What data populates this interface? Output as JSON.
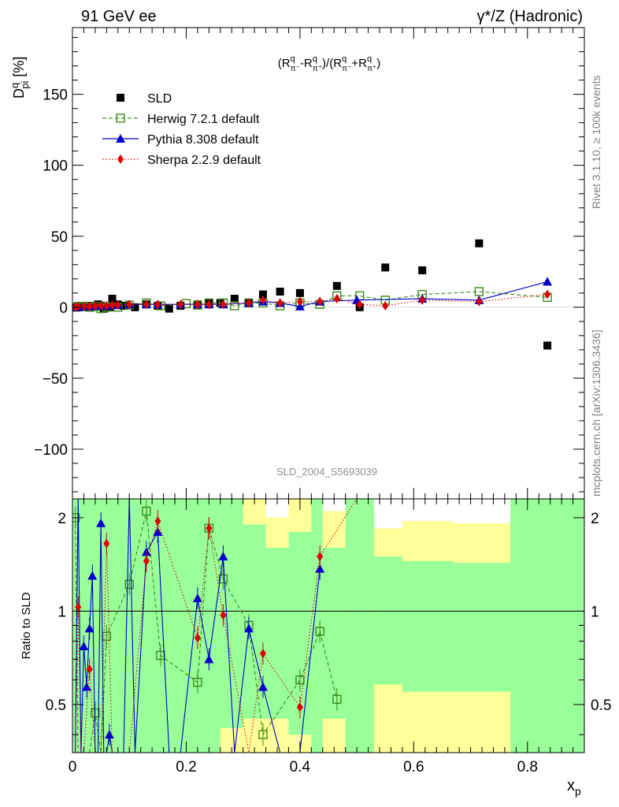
{
  "header": {
    "left": "91 GeV ee",
    "right": "γ*/Z (Hadronic)",
    "side_top": "Rivet 3.1.10, ≥ 100k events",
    "side_bottom": "mcplots.cern.ch [arXiv:1306.3436]",
    "watermark": "SLD_2004_S5693039"
  },
  "chart_data": [
    {
      "type": "scatter",
      "panel": "main",
      "title": "(R^q_π⁻-R^q_π⁺)/(R^q_π⁻+R^q_π⁺)",
      "ylabel": "D^q_pi [%]",
      "ylim": [
        -135,
        197
      ],
      "xlim": [
        0,
        0.9
      ],
      "yticks_labeled": [
        -100,
        -50,
        0,
        50,
        100,
        150
      ],
      "grid": false,
      "legend_placement": "top-left",
      "series": [
        {
          "name": "SLD",
          "style": "black-square",
          "x": [
            0.005,
            0.01,
            0.015,
            0.02,
            0.025,
            0.03,
            0.035,
            0.04,
            0.045,
            0.05,
            0.055,
            0.06,
            0.065,
            0.07,
            0.08,
            0.09,
            0.11,
            0.13,
            0.15,
            0.17,
            0.19,
            0.22,
            0.24,
            0.26,
            0.285,
            0.31,
            0.335,
            0.365,
            0.4,
            0.465,
            0.505,
            0.55,
            0.615,
            0.715,
            0.835
          ],
          "y": [
            0,
            0,
            1,
            0.5,
            1,
            1,
            0.5,
            1,
            2,
            1,
            -1,
            0,
            0,
            6,
            2,
            1,
            0,
            2,
            1,
            -1,
            1,
            2,
            3,
            3,
            6,
            3,
            9,
            11,
            10,
            15,
            0,
            28,
            26,
            45,
            -27
          ]
        },
        {
          "name": "Herwig 7.2.1 default",
          "style": "green-open-square-dashed",
          "x": [
            0.005,
            0.01,
            0.015,
            0.02,
            0.03,
            0.04,
            0.05,
            0.06,
            0.08,
            0.1,
            0.13,
            0.155,
            0.2,
            0.22,
            0.24,
            0.265,
            0.285,
            0.31,
            0.335,
            0.365,
            0.4,
            0.435,
            0.465,
            0.505,
            0.55,
            0.615,
            0.715,
            0.835
          ],
          "y": [
            0,
            0.5,
            0.5,
            0.5,
            0,
            0.5,
            -1,
            0,
            0,
            1.5,
            3,
            1,
            2.5,
            1.5,
            3,
            3,
            1,
            3,
            3,
            1,
            3,
            2,
            8,
            8,
            5,
            9,
            11,
            7
          ]
        },
        {
          "name": "Pythia 8.308 default",
          "style": "blue-triangle-solid",
          "x": [
            0.005,
            0.01,
            0.02,
            0.03,
            0.04,
            0.05,
            0.06,
            0.07,
            0.08,
            0.1,
            0.13,
            0.15,
            0.19,
            0.22,
            0.24,
            0.265,
            0.31,
            0.335,
            0.365,
            0.4,
            0.435,
            0.5,
            0.615,
            0.715,
            0.835
          ],
          "y": [
            0,
            0,
            0.5,
            0.5,
            1,
            1,
            1,
            1.5,
            1.5,
            2,
            2,
            2,
            2,
            2,
            2,
            2,
            3,
            4,
            3,
            0.5,
            4,
            5,
            6,
            5,
            18
          ]
        },
        {
          "name": "Sherpa 2.2.9 default",
          "style": "red-diamond-dotted",
          "x": [
            0.005,
            0.01,
            0.02,
            0.03,
            0.04,
            0.05,
            0.06,
            0.07,
            0.08,
            0.1,
            0.13,
            0.15,
            0.19,
            0.22,
            0.24,
            0.265,
            0.31,
            0.335,
            0.365,
            0.4,
            0.435,
            0.465,
            0.505,
            0.55,
            0.615,
            0.715,
            0.835
          ],
          "y": [
            0,
            0.5,
            0.5,
            0.5,
            1,
            1,
            1,
            1.5,
            1.5,
            2,
            2,
            2,
            2,
            2,
            2,
            2,
            3,
            5,
            3,
            4,
            4,
            6,
            2,
            1,
            5,
            4,
            9
          ]
        }
      ]
    },
    {
      "type": "line",
      "panel": "ratio",
      "ylabel": "Ratio to SLD",
      "xlabel": "x_p",
      "xlim": [
        0,
        0.9
      ],
      "ylim": [
        0.35,
        2.3
      ],
      "scale": "log",
      "yticks_labeled": [
        0.5,
        1,
        2
      ],
      "xticks_labeled": [
        0,
        0.2,
        0.4,
        0.6,
        0.8
      ],
      "reference_line": 1,
      "bands": {
        "green": [
          {
            "x1": 0,
            "x2": 0.01,
            "lo": 0.35,
            "hi": 2.3
          },
          {
            "x1": 0.01,
            "x2": 0.07,
            "lo": 0.35,
            "hi": 2.3
          },
          {
            "x1": 0.07,
            "x2": 0.2,
            "lo": 0.35,
            "hi": 2.3
          },
          {
            "x1": 0.2,
            "x2": 0.26,
            "lo": 0.35,
            "hi": 2.3
          },
          {
            "x1": 0.26,
            "x2": 0.3,
            "lo": 0.42,
            "hi": 2.3
          },
          {
            "x1": 0.3,
            "x2": 0.34,
            "lo": 0.45,
            "hi": 1.9
          },
          {
            "x1": 0.34,
            "x2": 0.38,
            "lo": 0.45,
            "hi": 1.6
          },
          {
            "x1": 0.38,
            "x2": 0.42,
            "lo": 0.4,
            "hi": 1.8
          },
          {
            "x1": 0.42,
            "x2": 0.44,
            "lo": 0.35,
            "hi": 2.3
          },
          {
            "x1": 0.44,
            "x2": 0.48,
            "lo": 0.45,
            "hi": 1.6
          },
          {
            "x1": 0.48,
            "x2": 0.53,
            "lo": 0.35,
            "hi": 2.3
          },
          {
            "x1": 0.53,
            "x2": 0.58,
            "lo": 0.58,
            "hi": 1.5
          },
          {
            "x1": 0.58,
            "x2": 0.67,
            "lo": 0.55,
            "hi": 1.45
          },
          {
            "x1": 0.67,
            "x2": 0.77,
            "lo": 0.55,
            "hi": 1.43
          },
          {
            "x1": 0.77,
            "x2": 0.9,
            "lo": 0.35,
            "hi": 2.3
          }
        ],
        "yellow": [
          {
            "x1": 0,
            "x2": 0.01,
            "lo": 0.35,
            "hi": 2.3
          },
          {
            "x1": 0.01,
            "x2": 0.2,
            "lo": 0.35,
            "hi": 2.3
          },
          {
            "x1": 0.2,
            "x2": 0.3,
            "lo": 0.35,
            "hi": 2.3
          },
          {
            "x1": 0.3,
            "x2": 0.34,
            "lo": 0.35,
            "hi": 2.3
          },
          {
            "x1": 0.34,
            "x2": 0.38,
            "lo": 0.35,
            "hi": 2.0
          },
          {
            "x1": 0.38,
            "x2": 0.42,
            "lo": 0.35,
            "hi": 2.3
          },
          {
            "x1": 0.42,
            "x2": 0.44,
            "lo": 0.35,
            "hi": 2.3
          },
          {
            "x1": 0.44,
            "x2": 0.48,
            "lo": 0.35,
            "hi": 2.1
          },
          {
            "x1": 0.48,
            "x2": 0.53,
            "lo": 0.35,
            "hi": 2.3
          },
          {
            "x1": 0.53,
            "x2": 0.58,
            "lo": 0.35,
            "hi": 1.85
          },
          {
            "x1": 0.58,
            "x2": 0.67,
            "lo": 0.35,
            "hi": 1.95
          },
          {
            "x1": 0.67,
            "x2": 0.77,
            "lo": 0.35,
            "hi": 1.92
          },
          {
            "x1": 0.77,
            "x2": 0.9,
            "lo": 0.35,
            "hi": 2.3
          }
        ]
      },
      "series": [
        {
          "name": "Herwig 7.2.1 default",
          "x": [
            0.005,
            0.01,
            0.02,
            0.03,
            0.04,
            0.05,
            0.06,
            0.1,
            0.13,
            0.155,
            0.22,
            0.24,
            0.265,
            0.31,
            0.335,
            0.4,
            0.435,
            0.465
          ],
          "y": [
            2.0,
            0.35,
            0.35,
            0.35,
            0.47,
            0.35,
            0.83,
            1.22,
            2.1,
            0.72,
            0.59,
            1.85,
            1.27,
            0.9,
            0.4,
            0.6,
            0.86,
            0.52
          ]
        },
        {
          "name": "Pythia 8.308 default",
          "x": [
            0.005,
            0.01,
            0.015,
            0.02,
            0.025,
            0.03,
            0.035,
            0.04,
            0.045,
            0.05,
            0.055,
            0.06,
            0.065,
            0.07,
            0.08,
            0.09,
            0.1,
            0.11,
            0.13,
            0.15,
            0.17,
            0.19,
            0.22,
            0.24,
            0.265,
            0.285,
            0.31,
            0.335,
            0.365,
            0.4,
            0.435
          ],
          "y": [
            0.35,
            2.3,
            0.35,
            0.77,
            0.57,
            0.88,
            1.3,
            0.35,
            0.35,
            1.92,
            0.35,
            0.35,
            0.4,
            0.35,
            0.35,
            0.35,
            2.3,
            0.35,
            1.55,
            1.8,
            0.35,
            0.35,
            1.1,
            0.7,
            1.5,
            0.35,
            0.88,
            0.57,
            0.35,
            0.35,
            1.37
          ]
        },
        {
          "name": "Sherpa 2.2.9 default",
          "x": [
            0.005,
            0.01,
            0.015,
            0.02,
            0.03,
            0.04,
            0.05,
            0.06,
            0.07,
            0.1,
            0.13,
            0.15,
            0.22,
            0.24,
            0.265,
            0.31,
            0.335,
            0.4,
            0.435,
            0.5
          ],
          "y": [
            0.35,
            1.03,
            0.35,
            0.35,
            0.65,
            0.35,
            0.35,
            1.65,
            0.35,
            0.35,
            1.45,
            1.95,
            0.82,
            1.85,
            0.97,
            0.35,
            0.73,
            0.49,
            1.5,
            2.3
          ]
        }
      ]
    }
  ]
}
